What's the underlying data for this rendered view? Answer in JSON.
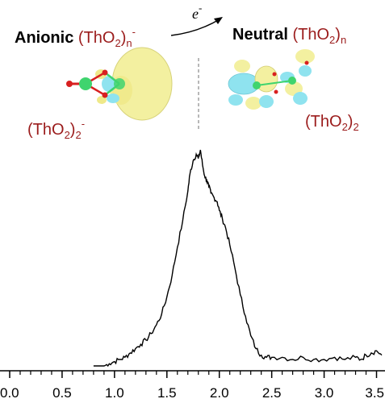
{
  "header": {
    "anionic_word": "Anionic",
    "anionic_formula": {
      "base": "(ThO",
      "sub": "2",
      "close": ")",
      "sub2": "n",
      "sup": "-"
    },
    "electron_label": {
      "base": "e",
      "sup": "-"
    },
    "neutral_word": "Neutral",
    "neutral_formula": {
      "base": "(ThO",
      "sub": "2",
      "close": ")",
      "sub2": "n"
    }
  },
  "insets": {
    "left_label": {
      "base": "(ThO",
      "sub": "2",
      "close": ")",
      "sub2": "2",
      "sup": "-"
    },
    "right_label": {
      "base": "(ThO",
      "sub": "2",
      "close": ")",
      "sub2": "2"
    }
  },
  "colors": {
    "formula_red": "#9b1c1c",
    "orbital_yellow": "#f3f0a0",
    "orbital_cyan": "#8fe3ef",
    "thorium_green": "#3fd46e",
    "oxygen_red": "#d82020"
  },
  "chart_data": {
    "type": "line",
    "title": "",
    "xlabel": "",
    "ylabel": "",
    "xlim": [
      0.0,
      3.55
    ],
    "ylim": [
      0,
      1.0
    ],
    "x_ticks": [
      "0.0",
      "0.5",
      "1.0",
      "1.5",
      "2.0",
      "2.5",
      "3.0",
      "3.5"
    ],
    "grid": false,
    "series": [
      {
        "x": [
          0.8,
          0.85,
          0.9,
          0.95,
          1.0,
          1.05,
          1.1,
          1.15,
          1.2,
          1.25,
          1.3,
          1.35,
          1.4,
          1.45,
          1.5,
          1.55,
          1.6,
          1.65,
          1.7,
          1.72,
          1.75,
          1.78,
          1.8,
          1.82,
          1.84,
          1.86,
          1.88,
          1.9,
          1.92,
          1.95,
          1.98,
          2.0,
          2.03,
          2.06,
          2.1,
          2.15,
          2.2,
          2.25,
          2.3,
          2.35,
          2.4,
          2.45,
          2.5,
          2.6,
          2.7,
          2.8,
          2.9,
          3.0,
          3.1,
          3.2,
          3.3,
          3.35,
          3.4,
          3.45,
          3.5,
          3.55
        ],
        "values": [
          0.0,
          0.0,
          0.0,
          0.01,
          0.02,
          0.03,
          0.04,
          0.06,
          0.08,
          0.1,
          0.12,
          0.15,
          0.19,
          0.24,
          0.32,
          0.42,
          0.55,
          0.67,
          0.81,
          0.89,
          0.95,
          0.98,
          0.96,
          1.0,
          0.93,
          0.88,
          0.86,
          0.83,
          0.8,
          0.78,
          0.76,
          0.72,
          0.68,
          0.64,
          0.56,
          0.45,
          0.33,
          0.23,
          0.14,
          0.08,
          0.05,
          0.04,
          0.04,
          0.04,
          0.03,
          0.04,
          0.03,
          0.03,
          0.04,
          0.03,
          0.04,
          0.03,
          0.05,
          0.06,
          0.07,
          0.05
        ]
      }
    ]
  }
}
